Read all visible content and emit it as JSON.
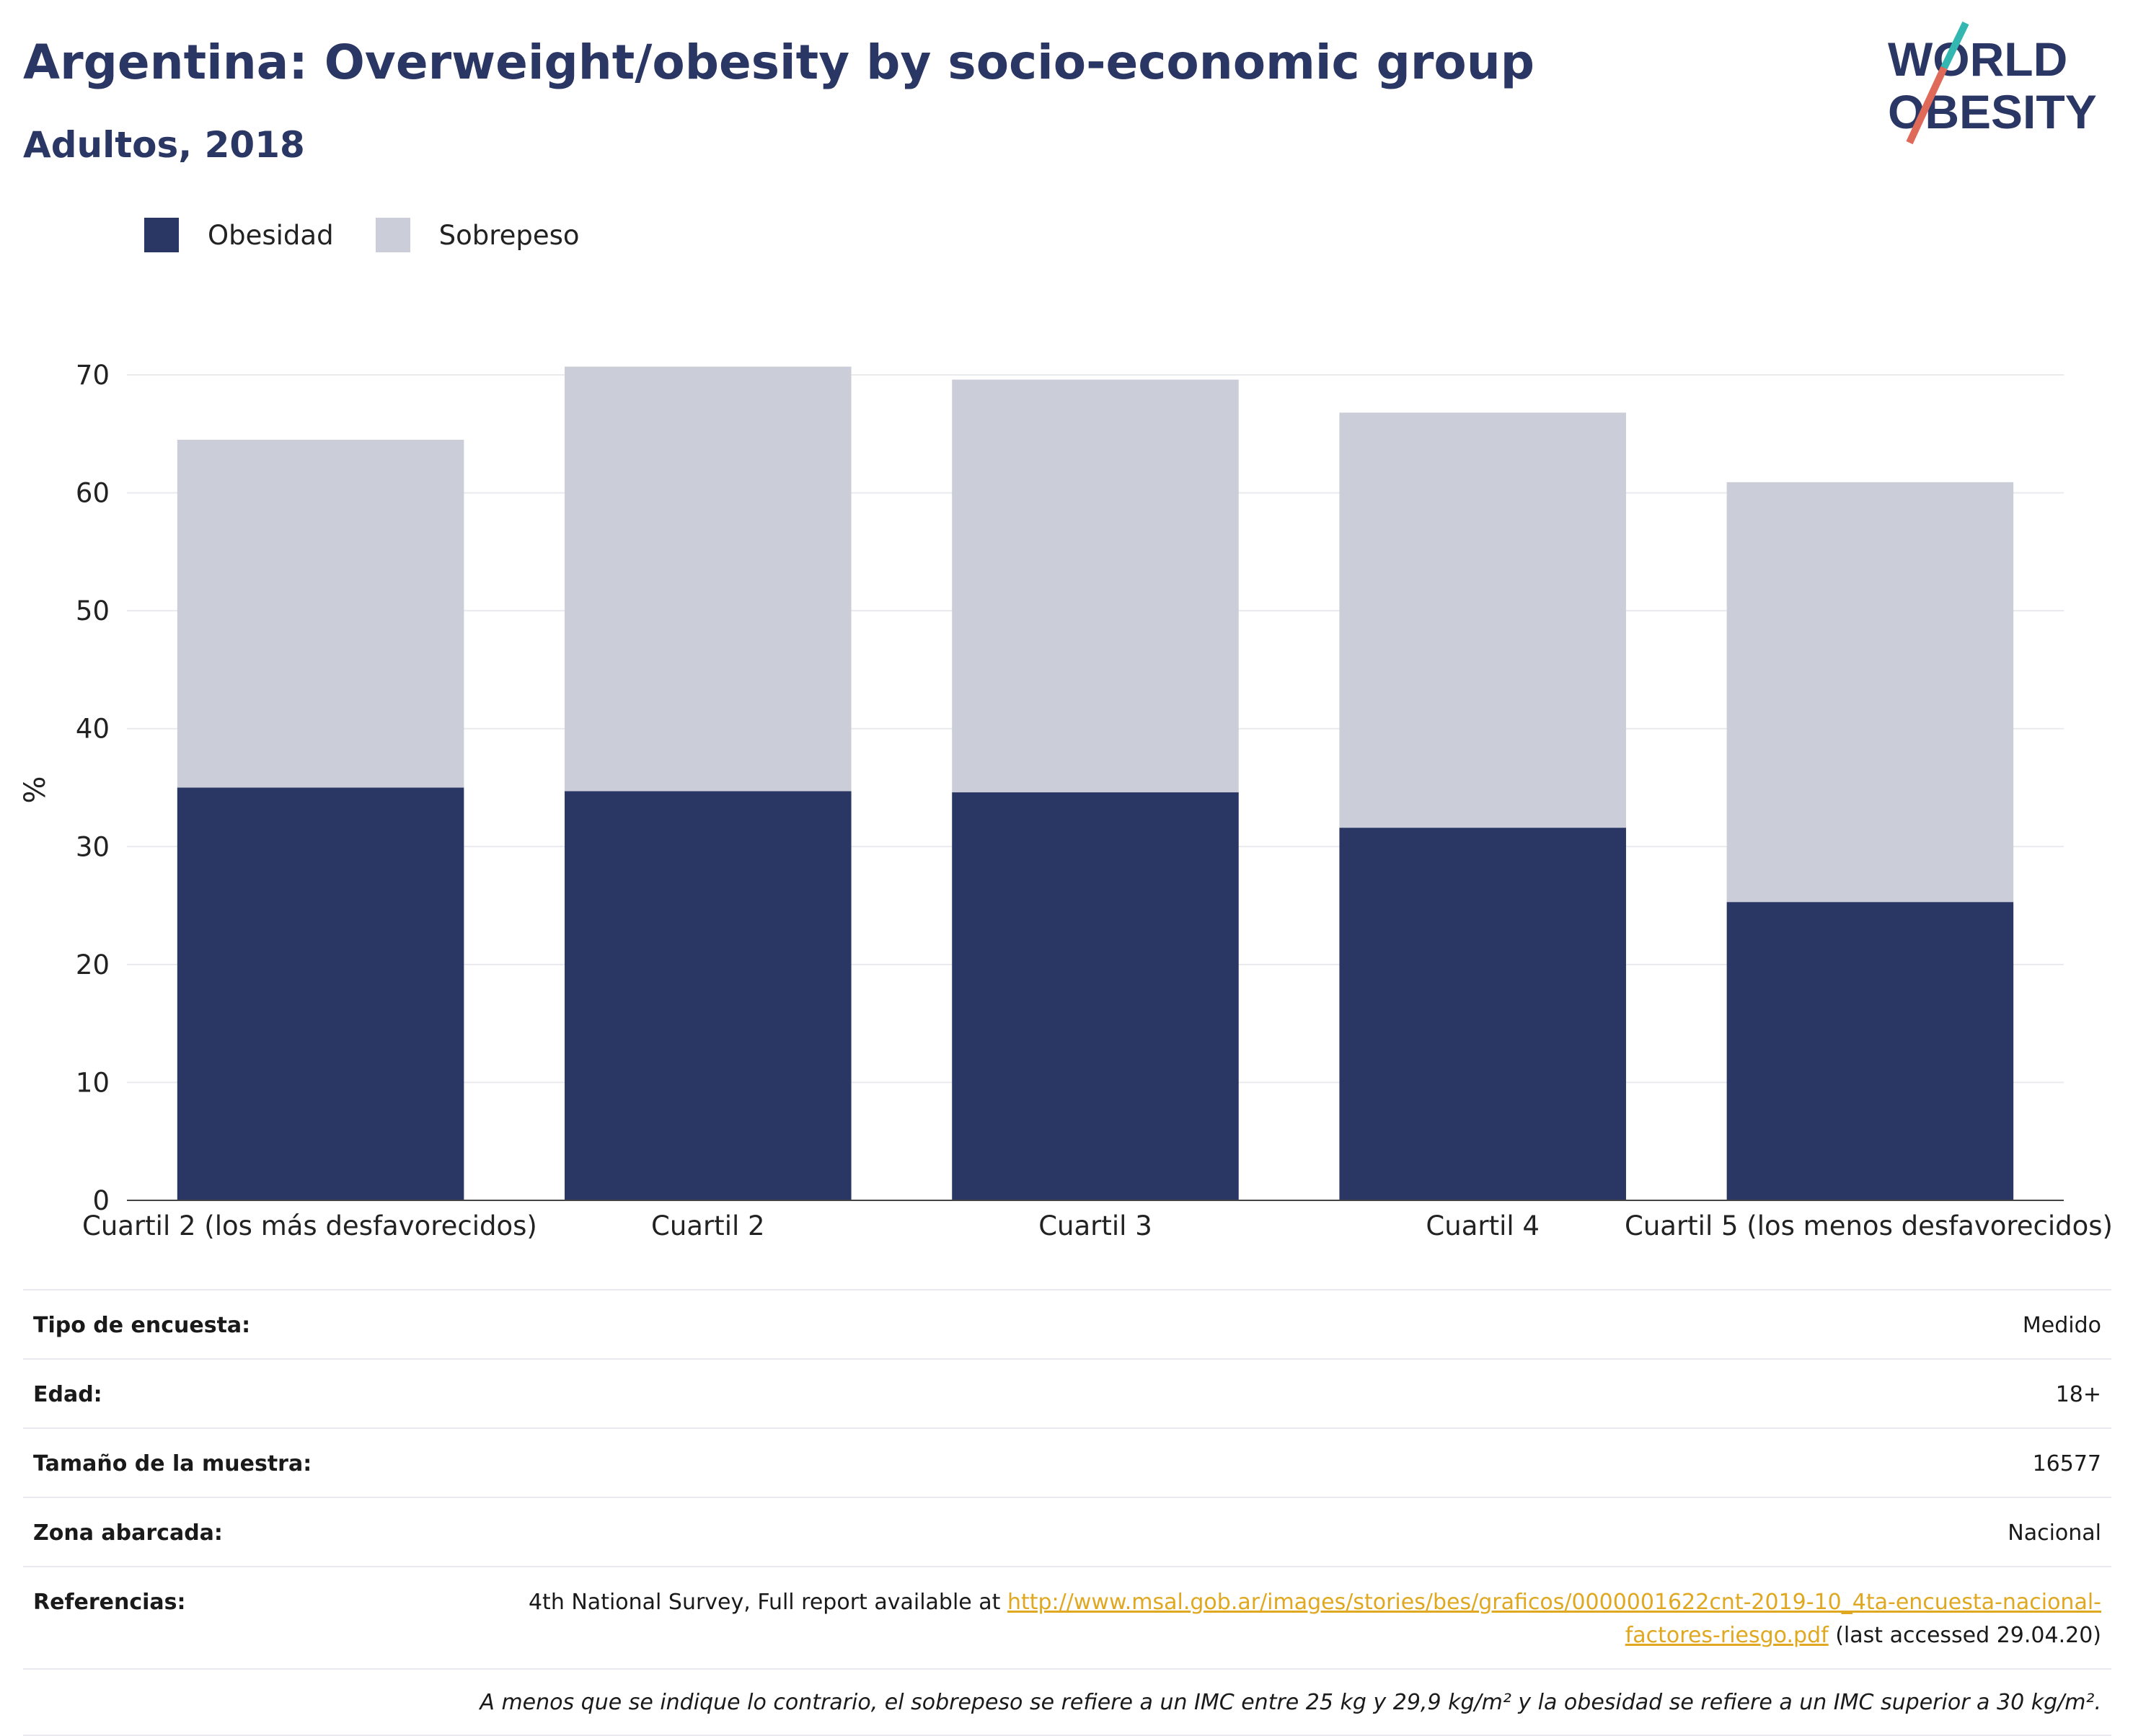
{
  "header": {
    "title": "Argentina: Overweight/obesity by socio-economic group",
    "subtitle": "Adultos, 2018"
  },
  "logo": {
    "line1": "WORLD",
    "line2": "OBESITY",
    "colors": {
      "text": "#2a3663",
      "slash_red": "#e06a5a",
      "slash_teal": "#33b7b0"
    }
  },
  "chart_data": {
    "type": "bar",
    "stacked": true,
    "categories": [
      "Cuartil 2 (los más desfavorecidos)",
      "Cuartil 2",
      "Cuartil 3",
      "Cuartil 4",
      "Cuartil 5 (los menos desfavorecidos)"
    ],
    "series": [
      {
        "name": "Obesidad",
        "color": "#2a3663",
        "values": [
          35.0,
          34.7,
          34.6,
          31.6,
          25.3
        ]
      },
      {
        "name": "Sobrepeso",
        "color": "#cbcdd8",
        "values": [
          29.5,
          36.0,
          35.0,
          35.2,
          35.6
        ]
      }
    ],
    "ylabel": "%",
    "xlabel": "",
    "ylim": [
      0,
      70
    ],
    "yticks": [
      0,
      10,
      20,
      30,
      40,
      50,
      60,
      70
    ],
    "grid": true,
    "legend_position": "top-left"
  },
  "metadata": {
    "rows": [
      {
        "key": "Tipo de encuesta:",
        "value": "Medido"
      },
      {
        "key": "Edad:",
        "value": "18+"
      },
      {
        "key": "Tamaño de la muestra:",
        "value": "16577"
      },
      {
        "key": "Zona abarcada:",
        "value": "Nacional"
      }
    ],
    "references": {
      "key": "Referencias:",
      "prefix": "4th National Survey, Full report available at ",
      "link": "http://www.msal.gob.ar/images/stories/bes/graficos/0000001622cnt-2019-10_4ta-encuesta-nacional-factores-riesgo.pdf",
      "suffix": " (last accessed 29.04.20)"
    },
    "note": "A menos que se indique lo contrario, el sobrepeso se refiere a un IMC entre 25 kg y 29,9 kg/m² y la obesidad se refiere a un IMC superior a 30 kg/m²."
  }
}
